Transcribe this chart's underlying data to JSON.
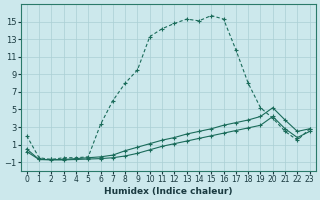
{
  "xlabel": "Humidex (Indice chaleur)",
  "background_color": "#cce8ec",
  "grid_color": "#aacfd4",
  "line_color": "#1a6b5a",
  "curve_main": {
    "x": [
      0,
      1,
      2,
      3,
      4,
      5,
      6,
      7,
      8,
      9,
      10,
      11,
      12,
      13,
      14,
      15,
      16,
      17,
      18,
      19,
      20,
      21,
      22,
      23
    ],
    "y": [
      2.0,
      -0.5,
      -0.7,
      -0.5,
      -0.5,
      -0.4,
      3.3,
      6.0,
      8.0,
      9.5,
      13.3,
      14.2,
      14.8,
      15.3,
      15.1,
      15.7,
      15.3,
      11.8,
      8.0,
      5.2,
      4.0,
      2.5,
      1.5,
      2.8
    ]
  },
  "curve_upper": {
    "x": [
      0,
      1,
      2,
      3,
      4,
      5,
      6,
      7,
      8,
      9,
      10,
      11,
      12,
      13,
      14,
      15,
      16,
      17,
      18,
      19,
      20,
      21,
      22,
      23
    ],
    "y": [
      0.5,
      -0.7,
      -0.7,
      -0.7,
      -0.6,
      -0.5,
      -0.4,
      -0.2,
      0.3,
      0.7,
      1.1,
      1.5,
      1.8,
      2.2,
      2.5,
      2.8,
      3.2,
      3.5,
      3.8,
      4.2,
      5.2,
      3.8,
      2.5,
      2.8
    ]
  },
  "curve_lower": {
    "x": [
      0,
      1,
      2,
      3,
      4,
      5,
      6,
      7,
      8,
      9,
      10,
      11,
      12,
      13,
      14,
      15,
      16,
      17,
      18,
      19,
      20,
      21,
      22,
      23
    ],
    "y": [
      0.2,
      -0.7,
      -0.75,
      -0.75,
      -0.7,
      -0.65,
      -0.6,
      -0.5,
      -0.3,
      0.0,
      0.4,
      0.8,
      1.1,
      1.4,
      1.7,
      2.0,
      2.3,
      2.6,
      2.9,
      3.2,
      4.2,
      2.8,
      1.8,
      2.5
    ]
  },
  "xlim": [
    -0.5,
    23.5
  ],
  "ylim": [
    -2.0,
    17.0
  ],
  "yticks": [
    -1,
    1,
    3,
    5,
    7,
    9,
    11,
    13,
    15
  ],
  "xticks": [
    0,
    1,
    2,
    3,
    4,
    5,
    6,
    7,
    8,
    9,
    10,
    11,
    12,
    13,
    14,
    15,
    16,
    17,
    18,
    19,
    20,
    21,
    22,
    23
  ]
}
